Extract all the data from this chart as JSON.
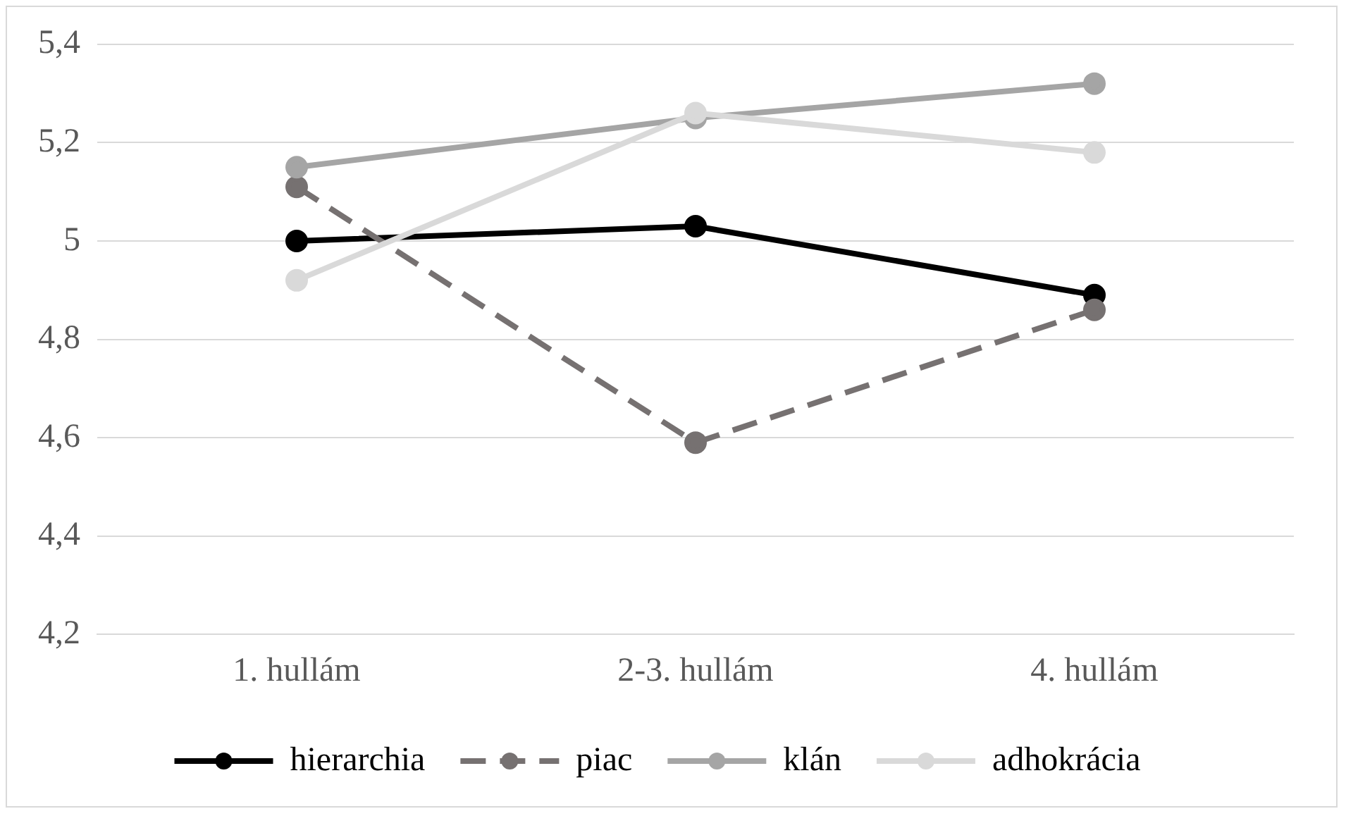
{
  "chart_data": {
    "type": "line",
    "categories": [
      "1. hullám",
      "2-3. hullám",
      "4. hullám"
    ],
    "series": [
      {
        "name": "hierarchia",
        "color": "#000000",
        "values": [
          5.0,
          5.03,
          4.89
        ],
        "line_style": "solid"
      },
      {
        "name": "piac",
        "color": "#767171",
        "values": [
          5.11,
          4.59,
          4.86
        ],
        "line_style": "dashed"
      },
      {
        "name": "klán",
        "color": "#a5a5a5",
        "values": [
          5.15,
          5.25,
          5.32
        ],
        "line_style": "solid"
      },
      {
        "name": "adhokrácia",
        "color": "#d9d9d9",
        "values": [
          4.92,
          5.26,
          5.18
        ],
        "line_style": "solid"
      }
    ],
    "ylim": [
      4.2,
      5.4
    ],
    "yticks": [
      {
        "value": 4.2,
        "label": "4,2"
      },
      {
        "value": 4.4,
        "label": "4,4"
      },
      {
        "value": 4.6,
        "label": "4,6"
      },
      {
        "value": 4.8,
        "label": "4,8"
      },
      5,
      {
        "value": 5.2,
        "label": "5,2"
      },
      {
        "value": 5.4,
        "label": "5,4"
      }
    ],
    "grid": "y",
    "legend": "bottom",
    "marker": "circle"
  }
}
